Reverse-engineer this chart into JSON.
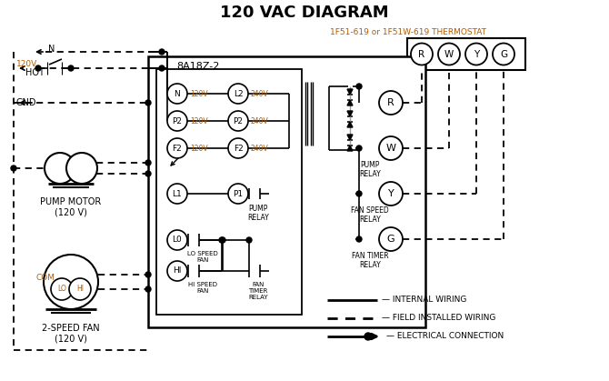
{
  "title": "120 VAC DIAGRAM",
  "bg_color": "#ffffff",
  "line_color": "#000000",
  "orange_color": "#b35a00",
  "thermostat_label": "1F51-619 or 1F51W-619 THERMOSTAT",
  "box8a18z2_label": "8A18Z-2",
  "legend_items": [
    {
      "label": "INTERNAL WIRING",
      "style": "solid"
    },
    {
      "label": "FIELD INSTALLED WIRING",
      "style": "dashed"
    },
    {
      "label": "ELECTRICAL CONNECTION",
      "style": "dot_arrow"
    }
  ],
  "terminal_labels": [
    "R",
    "W",
    "Y",
    "G"
  ],
  "pump_relay_label": "PUMP\nRELAY",
  "fan_speed_relay_label": "FAN SPEED\nRELAY",
  "fan_timer_relay_label": "FAN TIMER\nRELAY",
  "pump_motor_label": "PUMP MOTOR\n(120 V)",
  "two_speed_fan_label": "2-SPEED FAN\n(120 V)"
}
